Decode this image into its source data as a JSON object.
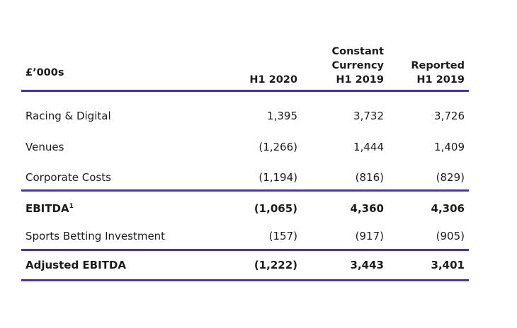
{
  "colors": {
    "rule": "#4b2fb5",
    "text": "#1c1c1c"
  },
  "header": {
    "unit_label": "£’000s",
    "col1": [
      "H1 2020"
    ],
    "col2": [
      "Constant",
      "Currency",
      "H1 2019"
    ],
    "col3": [
      "Reported",
      "H1 2019"
    ]
  },
  "rows": [
    {
      "label": "Racing & Digital",
      "c1": "1,395",
      "c2": "3,732",
      "c3": "3,726",
      "bold": false
    },
    {
      "label": "Venues",
      "c1": "(1,266)",
      "c2": "1,444",
      "c3": "1,409",
      "bold": false
    },
    {
      "label": "Corporate Costs",
      "c1": "(1,194)",
      "c2": "(816)",
      "c3": "(829)",
      "bold": false
    },
    {
      "label": "EBITDA",
      "label_sup": "1",
      "c1": "(1,065)",
      "c2": "4,360",
      "c3": "4,306",
      "bold": true
    },
    {
      "label": "Sports Betting Investment",
      "c1": "(157)",
      "c2": "(917)",
      "c3": "(905)",
      "bold": false
    },
    {
      "label": "Adjusted EBITDA",
      "c1": "(1,222)",
      "c2": "3,443",
      "c3": "3,401",
      "bold": true
    }
  ]
}
